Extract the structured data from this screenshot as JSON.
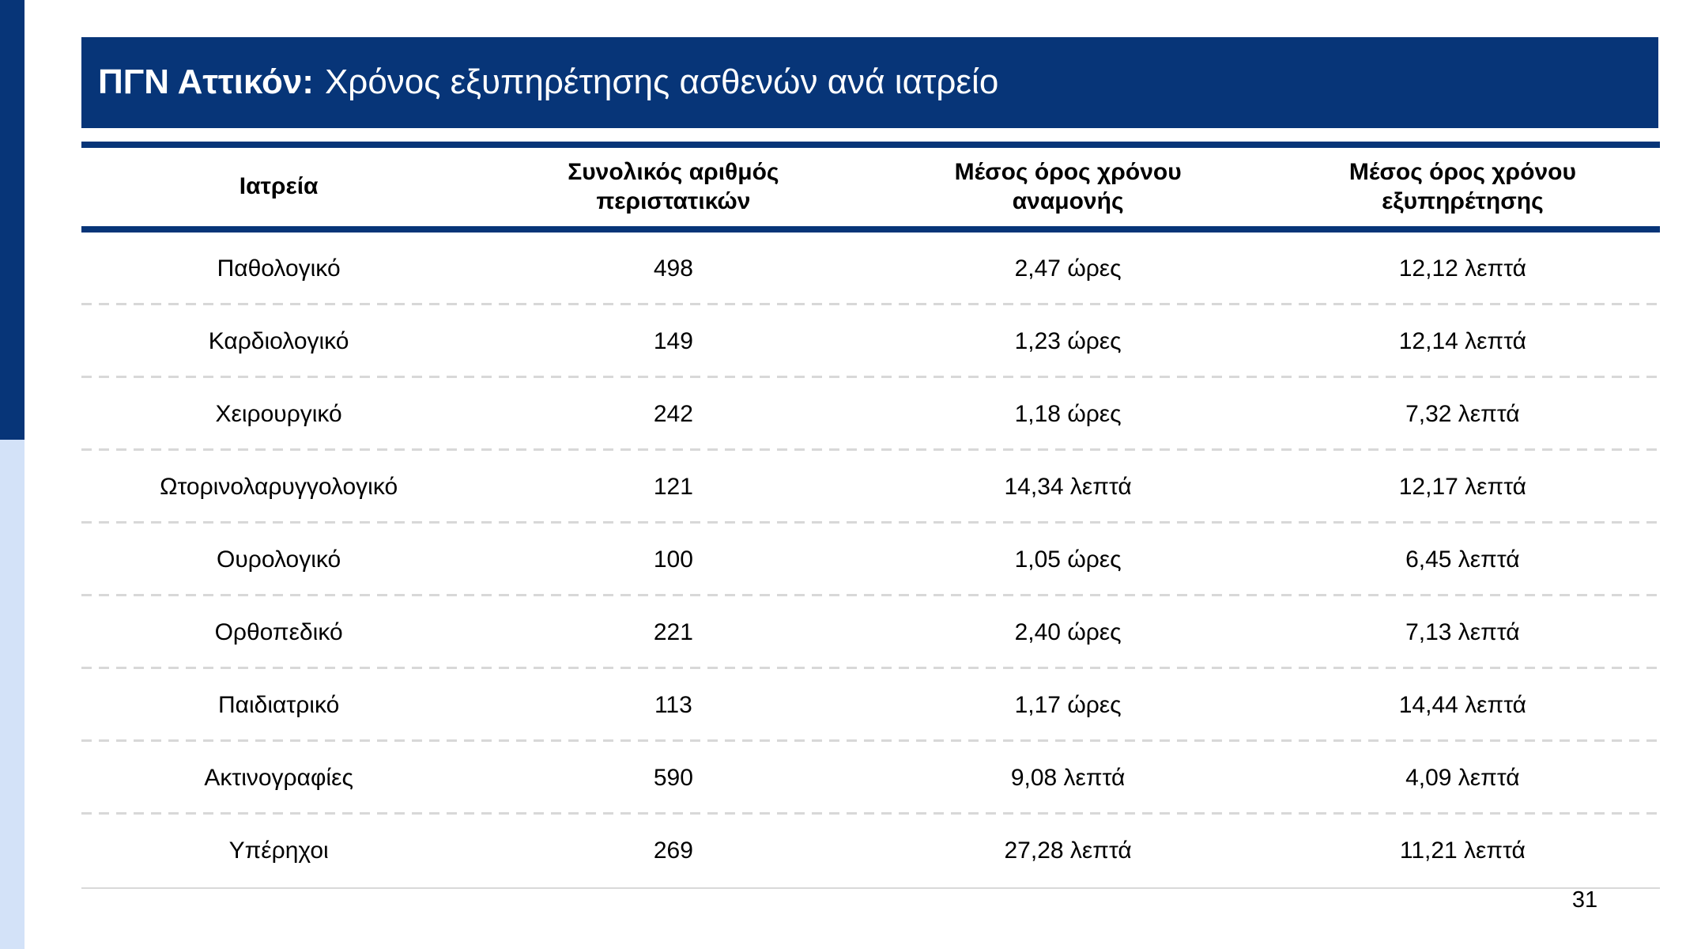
{
  "slide": {
    "title": {
      "prefix": "ΠΓΝ Αττικόν:",
      "subtitle": "Χρόνος εξυπηρέτησης ασθενών ανά ιατρείο"
    },
    "page_number": "31"
  },
  "colors": {
    "navy": "#073578",
    "light_blue": "#d3e2f8",
    "separator_gray": "#d9d9d9",
    "title_text": "#ffffff",
    "body_text": "#000000"
  },
  "table": {
    "columns": [
      "Ιατρεία",
      "Συνολικός αριθμός περιστατικών",
      "Μέσος όρος χρόνου αναμονής",
      "Μέσος όρος χρόνου εξυπηρέτησης"
    ],
    "rows": [
      [
        "Παθολογικό",
        "498",
        "2,47 ώρες",
        "12,12 λεπτά"
      ],
      [
        "Καρδιολογικό",
        "149",
        "1,23 ώρες",
        "12,14 λεπτά"
      ],
      [
        "Χειρουργικό",
        "242",
        "1,18 ώρες",
        "7,32 λεπτά"
      ],
      [
        "Ωτορινολαρυγγολογικό",
        "121",
        "14,34 λεπτά",
        "12,17 λεπτά"
      ],
      [
        "Ουρολογικό",
        "100",
        "1,05 ώρες",
        "6,45 λεπτά"
      ],
      [
        "Ορθοπεδικό",
        "221",
        "2,40 ώρες",
        "7,13 λεπτά"
      ],
      [
        "Παιδιατρικό",
        "113",
        "1,17 ώρες",
        "14,44 λεπτά"
      ],
      [
        "Ακτινογραφίες",
        "590",
        "9,08 λεπτά",
        "4,09 λεπτά"
      ],
      [
        "Υπέρηχοι",
        "269",
        "27,28 λεπτά",
        "11,21 λεπτά"
      ]
    ]
  }
}
